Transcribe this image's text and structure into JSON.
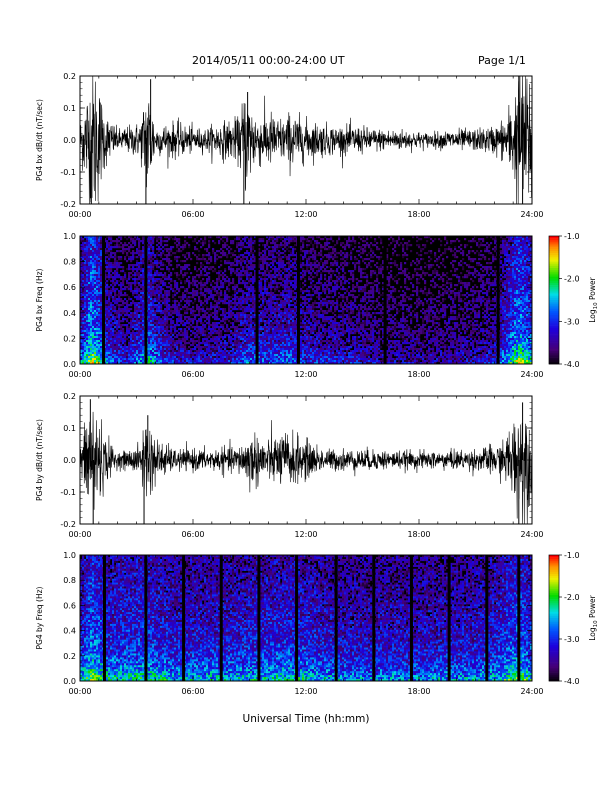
{
  "header": {
    "title": "2014/05/11   00:00-24:00 UT",
    "page": "Page 1/1"
  },
  "chart_data": [
    {
      "type": "line",
      "ylabel": "PG4 bx dB/dt (nT/sec)",
      "xlim": [
        0,
        24
      ],
      "ylim": [
        -0.2,
        0.2
      ],
      "x_ticks": [
        "00:00",
        "06:00",
        "12:00",
        "18:00",
        "24:00"
      ],
      "y_ticks": [
        "0.2",
        "0.1",
        "0.0",
        "-0.1",
        "-0.2"
      ],
      "amplitude_envelope": [
        {
          "x": 0.0,
          "amp": 0.05
        },
        {
          "x": 0.5,
          "amp": 0.18
        },
        {
          "x": 0.8,
          "amp": 0.22
        },
        {
          "x": 1.3,
          "amp": 0.08
        },
        {
          "x": 2.0,
          "amp": 0.03
        },
        {
          "x": 3.2,
          "amp": 0.05
        },
        {
          "x": 3.6,
          "amp": 0.18
        },
        {
          "x": 4.0,
          "amp": 0.04
        },
        {
          "x": 5.0,
          "amp": 0.05
        },
        {
          "x": 6.5,
          "amp": 0.03
        },
        {
          "x": 7.5,
          "amp": 0.05
        },
        {
          "x": 8.4,
          "amp": 0.06
        },
        {
          "x": 8.8,
          "amp": 0.15
        },
        {
          "x": 9.4,
          "amp": 0.07
        },
        {
          "x": 10.0,
          "amp": 0.08
        },
        {
          "x": 10.8,
          "amp": 0.06
        },
        {
          "x": 11.2,
          "amp": 0.08
        },
        {
          "x": 11.8,
          "amp": 0.06
        },
        {
          "x": 12.5,
          "amp": 0.05
        },
        {
          "x": 13.5,
          "amp": 0.04
        },
        {
          "x": 14.5,
          "amp": 0.04
        },
        {
          "x": 16.0,
          "amp": 0.03
        },
        {
          "x": 17.0,
          "amp": 0.03
        },
        {
          "x": 18.5,
          "amp": 0.02
        },
        {
          "x": 20.0,
          "amp": 0.03
        },
        {
          "x": 21.0,
          "amp": 0.03
        },
        {
          "x": 22.0,
          "amp": 0.04
        },
        {
          "x": 22.5,
          "amp": 0.06
        },
        {
          "x": 23.0,
          "amp": 0.12
        },
        {
          "x": 23.4,
          "amp": 0.22
        },
        {
          "x": 24.0,
          "amp": 0.2
        }
      ],
      "spikes": [
        {
          "x": 0.6,
          "y": -0.2
        },
        {
          "x": 3.5,
          "y": -0.2
        },
        {
          "x": 3.75,
          "y": 0.19
        },
        {
          "x": 8.7,
          "y": -0.2
        },
        {
          "x": 8.9,
          "y": 0.15
        },
        {
          "x": 23.3,
          "y": 0.22
        },
        {
          "x": 23.5,
          "y": -0.2
        }
      ]
    },
    {
      "type": "heatmap",
      "ylabel": "PG4 bx Freq (Hz)",
      "xlim": [
        0,
        24
      ],
      "ylim": [
        0,
        1
      ],
      "x_ticks": [
        "00:00",
        "06:00",
        "12:00",
        "18:00",
        "24:00"
      ],
      "y_ticks": [
        "1.0",
        "0.8",
        "0.6",
        "0.4",
        "0.2",
        "0.0"
      ],
      "colorbar": {
        "label": "Log10 Power",
        "label_text": "Log",
        "label_sub": "10",
        "label_rest": " Power",
        "ticks": [
          "-1.0",
          "-2.0",
          "-3.0",
          "-4.0"
        ],
        "range": [
          -4.0,
          -1.0
        ]
      },
      "activity": [
        {
          "x": 0.0,
          "a": 0.45
        },
        {
          "x": 0.6,
          "a": 0.85
        },
        {
          "x": 1.0,
          "a": 0.7
        },
        {
          "x": 1.5,
          "a": 0.45
        },
        {
          "x": 2.5,
          "a": 0.3
        },
        {
          "x": 3.6,
          "a": 0.6
        },
        {
          "x": 4.5,
          "a": 0.35
        },
        {
          "x": 6.0,
          "a": 0.25
        },
        {
          "x": 8.0,
          "a": 0.3
        },
        {
          "x": 9.0,
          "a": 0.45
        },
        {
          "x": 10.0,
          "a": 0.4
        },
        {
          "x": 11.0,
          "a": 0.45
        },
        {
          "x": 12.0,
          "a": 0.35
        },
        {
          "x": 14.0,
          "a": 0.3
        },
        {
          "x": 16.0,
          "a": 0.22
        },
        {
          "x": 18.0,
          "a": 0.2
        },
        {
          "x": 20.0,
          "a": 0.22
        },
        {
          "x": 22.0,
          "a": 0.3
        },
        {
          "x": 23.3,
          "a": 0.8
        },
        {
          "x": 24.0,
          "a": 0.6
        }
      ],
      "gaps_hours": [
        1.25,
        3.5,
        9.4,
        11.6,
        16.2,
        22.2
      ]
    },
    {
      "type": "line",
      "ylabel": "PG4 by dB/dt (nT/sec)",
      "xlim": [
        0,
        24
      ],
      "ylim": [
        -0.2,
        0.2
      ],
      "x_ticks": [
        "00:00",
        "06:00",
        "12:00",
        "18:00",
        "24:00"
      ],
      "y_ticks": [
        "0.2",
        "0.1",
        "0.0",
        "-0.1",
        "-0.2"
      ],
      "amplitude_envelope": [
        {
          "x": 0.0,
          "amp": 0.04
        },
        {
          "x": 0.5,
          "amp": 0.16
        },
        {
          "x": 0.8,
          "amp": 0.19
        },
        {
          "x": 1.3,
          "amp": 0.07
        },
        {
          "x": 2.0,
          "amp": 0.02
        },
        {
          "x": 3.2,
          "amp": 0.04
        },
        {
          "x": 3.5,
          "amp": 0.14
        },
        {
          "x": 4.0,
          "amp": 0.06
        },
        {
          "x": 5.0,
          "amp": 0.03
        },
        {
          "x": 7.0,
          "amp": 0.03
        },
        {
          "x": 8.5,
          "amp": 0.04
        },
        {
          "x": 9.0,
          "amp": 0.08
        },
        {
          "x": 10.0,
          "amp": 0.06
        },
        {
          "x": 11.0,
          "amp": 0.08
        },
        {
          "x": 11.8,
          "amp": 0.06
        },
        {
          "x": 13.0,
          "amp": 0.03
        },
        {
          "x": 15.0,
          "amp": 0.03
        },
        {
          "x": 17.0,
          "amp": 0.025
        },
        {
          "x": 19.0,
          "amp": 0.025
        },
        {
          "x": 21.0,
          "amp": 0.03
        },
        {
          "x": 22.5,
          "amp": 0.05
        },
        {
          "x": 23.2,
          "amp": 0.14
        },
        {
          "x": 23.6,
          "amp": 0.19
        },
        {
          "x": 24.0,
          "amp": 0.1
        }
      ],
      "spikes": [
        {
          "x": 0.55,
          "y": 0.19
        },
        {
          "x": 0.7,
          "y": -0.2
        },
        {
          "x": 3.4,
          "y": -0.2
        },
        {
          "x": 3.6,
          "y": 0.14
        },
        {
          "x": 23.5,
          "y": 0.18
        },
        {
          "x": 23.3,
          "y": -0.2
        }
      ]
    },
    {
      "type": "heatmap",
      "ylabel": "PG4 by Freq (Hz)",
      "xlim": [
        0,
        24
      ],
      "ylim": [
        0,
        1
      ],
      "x_ticks": [
        "00:00",
        "06:00",
        "12:00",
        "18:00",
        "24:00"
      ],
      "y_ticks": [
        "1.0",
        "0.8",
        "0.6",
        "0.4",
        "0.2",
        "0.0"
      ],
      "xlabel": "Universal Time (hh:mm)",
      "colorbar": {
        "label": "Log10 Power",
        "label_text": "Log",
        "label_sub": "10",
        "label_rest": " Power",
        "ticks": [
          "-1.0",
          "-2.0",
          "-3.0",
          "-4.0"
        ],
        "range": [
          -4.0,
          -1.0
        ]
      },
      "activity": [
        {
          "x": 0.0,
          "a": 0.55
        },
        {
          "x": 0.6,
          "a": 0.8
        },
        {
          "x": 1.5,
          "a": 0.6
        },
        {
          "x": 3.5,
          "a": 0.65
        },
        {
          "x": 5.0,
          "a": 0.55
        },
        {
          "x": 8.0,
          "a": 0.55
        },
        {
          "x": 10.0,
          "a": 0.6
        },
        {
          "x": 11.5,
          "a": 0.6
        },
        {
          "x": 14.0,
          "a": 0.5
        },
        {
          "x": 16.0,
          "a": 0.5
        },
        {
          "x": 18.0,
          "a": 0.5
        },
        {
          "x": 20.0,
          "a": 0.5
        },
        {
          "x": 22.0,
          "a": 0.55
        },
        {
          "x": 23.3,
          "a": 0.75
        },
        {
          "x": 24.0,
          "a": 0.6
        }
      ],
      "gaps_hours": [
        1.3,
        3.5,
        5.5,
        7.5,
        9.5,
        11.5,
        13.6,
        15.6,
        17.6,
        19.6,
        21.6,
        23.3
      ]
    }
  ]
}
